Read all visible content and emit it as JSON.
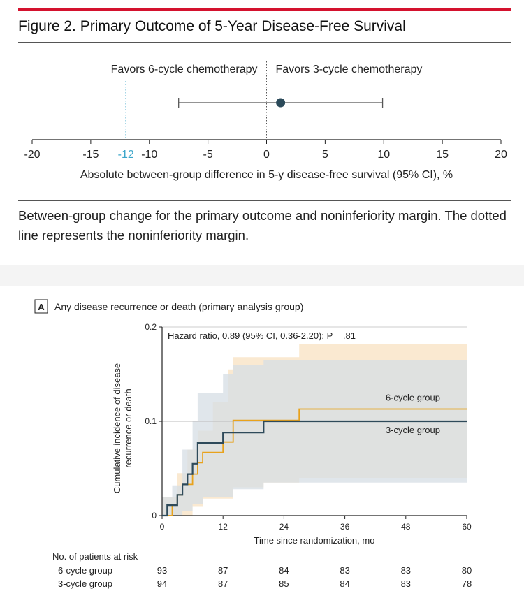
{
  "figure_title": "Figure 2. Primary Outcome of 5-Year Disease-Free Survival",
  "caption": "Between-group change for the primary outcome and noninferiority margin. The dotted line represents the noninferiority margin.",
  "colors": {
    "accent_red": "#d4122e",
    "point_dark": "#2b4a5a",
    "margin_blue": "#3aa5c9",
    "series_6cycle": "#e8a21c",
    "series_3cycle": "#2e4a5a",
    "ci_band": "#e3e3e3"
  },
  "chart_data": [
    {
      "type": "forest",
      "favors_left": "Favors 6-cycle chemotherapy",
      "favors_right": "Favors 3-cycle chemotherapy",
      "xlabel": "Absolute between-group difference in 5-y disease-free survival (95% CI), %",
      "xlim": [
        -20,
        20
      ],
      "x_ticks": [
        "-20",
        "-15",
        "-10",
        "-5",
        "0",
        "5",
        "10",
        "15",
        "20"
      ],
      "margin_label": "-12",
      "noninferiority_margin": -12,
      "estimate": 1.2,
      "ci": [
        -7.5,
        9.9
      ]
    },
    {
      "type": "line",
      "panel_label": "A",
      "title": "Any disease recurrence or death (primary analysis group)",
      "annotation": "Hazard ratio, 0.89 (95% CI, 0.36-2.20); P = .81",
      "xlabel": "Time since randomization, mo",
      "ylabel": "Cumulative incidence of disease recurrence or death",
      "xlim": [
        0,
        60
      ],
      "ylim": [
        0,
        0.2
      ],
      "x_ticks": [
        "0",
        "12",
        "24",
        "36",
        "48",
        "60"
      ],
      "y_ticks": [
        "0",
        "0.1",
        "0.2"
      ],
      "series": [
        {
          "name": "6-cycle group",
          "steps": [
            [
              0,
              0
            ],
            [
              2,
              0.011
            ],
            [
              3,
              0.022
            ],
            [
              4,
              0.033
            ],
            [
              6,
              0.044
            ],
            [
              7,
              0.056
            ],
            [
              8,
              0.067
            ],
            [
              12,
              0.078
            ],
            [
              14,
              0.101
            ],
            [
              27,
              0.113
            ],
            [
              60,
              0.113
            ]
          ],
          "ci_upper": [
            [
              0,
              0.02
            ],
            [
              3,
              0.045
            ],
            [
              5,
              0.07
            ],
            [
              7,
              0.09
            ],
            [
              10,
              0.12
            ],
            [
              13,
              0.155
            ],
            [
              14,
              0.168
            ],
            [
              20,
              0.168
            ],
            [
              27,
              0.182
            ],
            [
              60,
              0.182
            ]
          ],
          "ci_lower": [
            [
              0,
              0
            ],
            [
              6,
              0.01
            ],
            [
              8,
              0.018
            ],
            [
              14,
              0.03
            ],
            [
              20,
              0.035
            ],
            [
              27,
              0.04
            ],
            [
              60,
              0.04
            ]
          ]
        },
        {
          "name": "3-cycle group",
          "steps": [
            [
              0,
              0
            ],
            [
              1,
              0.011
            ],
            [
              3,
              0.022
            ],
            [
              4,
              0.033
            ],
            [
              5,
              0.044
            ],
            [
              6,
              0.055
            ],
            [
              7,
              0.077
            ],
            [
              12,
              0.088
            ],
            [
              20,
              0.1
            ],
            [
              60,
              0.1
            ]
          ],
          "ci_upper": [
            [
              0,
              0.02
            ],
            [
              2,
              0.032
            ],
            [
              4,
              0.07
            ],
            [
              6,
              0.1
            ],
            [
              7,
              0.13
            ],
            [
              12,
              0.15
            ],
            [
              14,
              0.16
            ],
            [
              20,
              0.165
            ],
            [
              60,
              0.165
            ]
          ],
          "ci_lower": [
            [
              0,
              0
            ],
            [
              4,
              0.005
            ],
            [
              6,
              0.012
            ],
            [
              8,
              0.02
            ],
            [
              14,
              0.028
            ],
            [
              20,
              0.035
            ],
            [
              60,
              0.035
            ]
          ]
        }
      ],
      "risk_table": {
        "header": "No. of patients at risk",
        "times": [
          0,
          12,
          24,
          36,
          48,
          60
        ],
        "rows": [
          {
            "label": "6-cycle group",
            "values": [
              "93",
              "87",
              "84",
              "83",
              "83",
              "80"
            ]
          },
          {
            "label": "3-cycle group",
            "values": [
              "94",
              "87",
              "85",
              "84",
              "83",
              "78"
            ]
          }
        ]
      }
    }
  ]
}
